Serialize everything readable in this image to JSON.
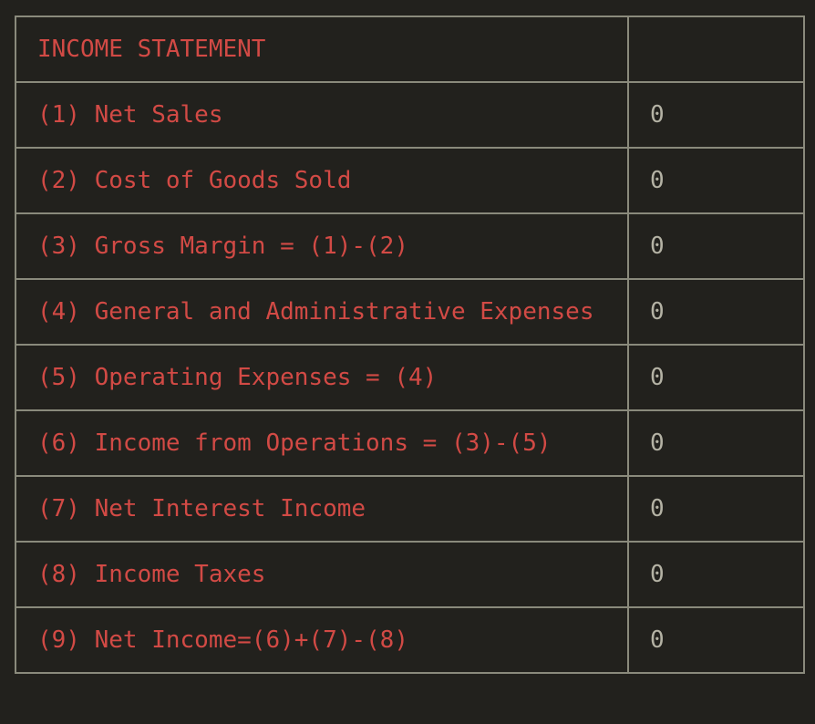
{
  "table": {
    "header": {
      "title": "INCOME STATEMENT",
      "value": ""
    },
    "rows": [
      {
        "label": "(1) Net Sales",
        "value": "0"
      },
      {
        "label": "(2) Cost of Goods Sold",
        "value": "0"
      },
      {
        "label": "(3) Gross Margin = (1)-(2)",
        "value": "0"
      },
      {
        "label": "(4) General and Administrative Expenses",
        "value": "0"
      },
      {
        "label": "(5) Operating Expenses = (4)",
        "value": "0"
      },
      {
        "label": "(6) Income from Operations = (3)-(5)",
        "value": "0"
      },
      {
        "label": "(7) Net Interest Income",
        "value": "0"
      },
      {
        "label": "(8) Income Taxes",
        "value": "0"
      },
      {
        "label": "(9) Net Income=(6)+(7)-(8)",
        "value": "0"
      }
    ]
  },
  "colors": {
    "background": "#22211d",
    "label_text": "#d24a45",
    "value_text": "#b4b2a4",
    "border": "#8a8a7c"
  }
}
